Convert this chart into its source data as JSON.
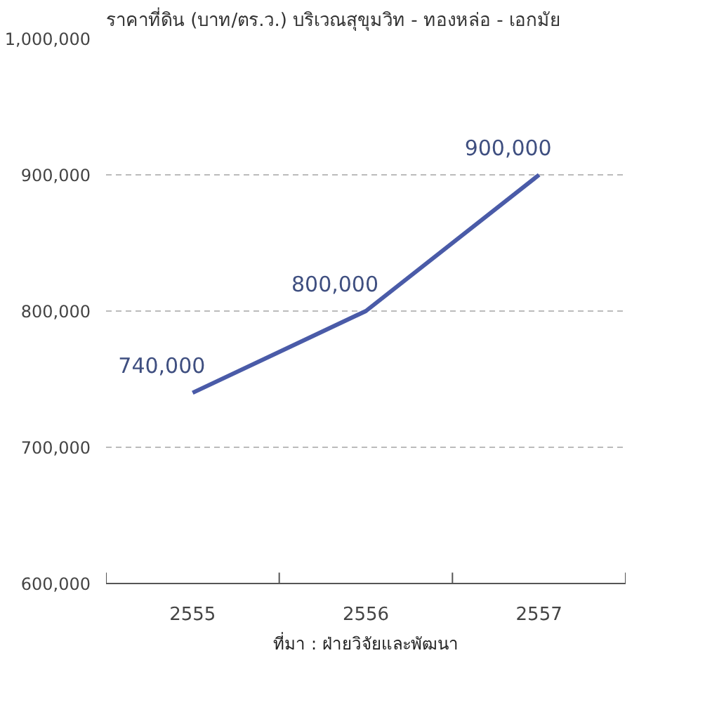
{
  "chart_data": {
    "type": "line",
    "title": "ราคาที่ดิน (บาท/ตร.ว.) บริเวณสุขุมวิท - ทองหล่อ - เอกมัย",
    "categories": [
      "2555",
      "2556",
      "2557"
    ],
    "series": [
      {
        "color": "#4a5ba8",
        "values": [
          740000,
          800000,
          900000
        ],
        "value_labels": [
          "740,000",
          "800,000",
          "900,000"
        ]
      }
    ],
    "ylim": [
      600000,
      1000000
    ],
    "yticks": [
      {
        "value": 600000,
        "label": "600,000"
      },
      {
        "value": 700000,
        "label": "700,000"
      },
      {
        "value": 800000,
        "label": "800,000"
      },
      {
        "value": 900000,
        "label": "900,000"
      },
      {
        "value": 1000000,
        "label": "1,000,000"
      }
    ],
    "grid": "y",
    "marker": "none",
    "line_style": "solid",
    "annotations": [
      "ที่มา : ฝ่ายวิจัยและพัฒนา"
    ]
  }
}
